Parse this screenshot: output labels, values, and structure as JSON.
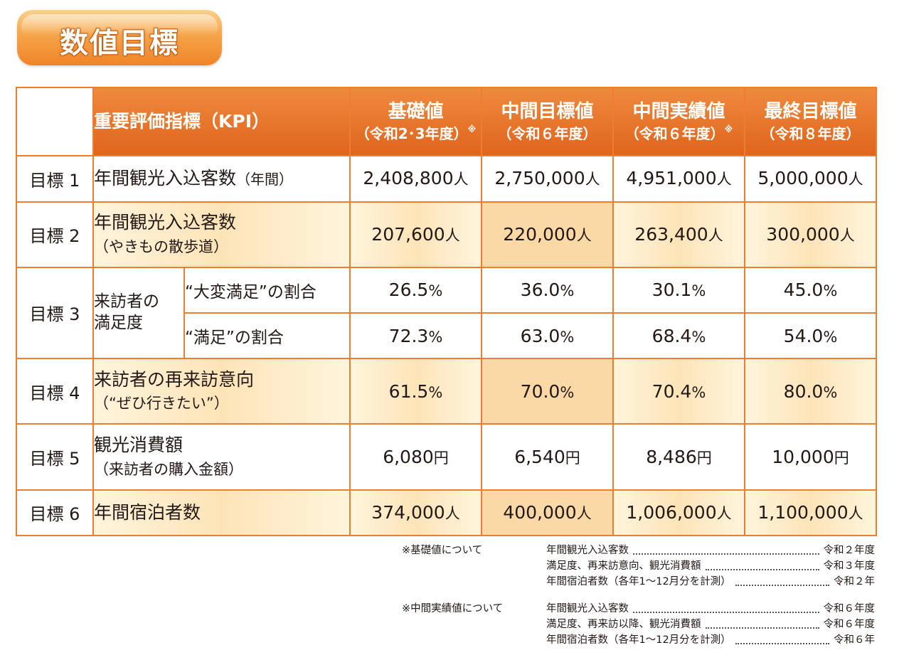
{
  "title": "数値目標",
  "header": {
    "kpi": "重要評価指標（KPI）",
    "cols": [
      {
        "main": "基礎値",
        "sub": "（令和2･3年度）",
        "mark": "※"
      },
      {
        "main": "中間目標値",
        "sub": "（令和６年度）",
        "mark": ""
      },
      {
        "main": "中間実績値",
        "sub": "（令和６年度）",
        "mark": "※"
      },
      {
        "main": "最終目標値",
        "sub": "（令和８年度）",
        "mark": ""
      }
    ]
  },
  "rows": {
    "g1": {
      "goal": "目標 1",
      "metric": "年間観光入込客数",
      "metric_note": "（年間）",
      "values": [
        {
          "n": "2,408,800",
          "u": "人"
        },
        {
          "n": "2,750,000",
          "u": "人"
        },
        {
          "n": "4,951,000",
          "u": "人"
        },
        {
          "n": "5,000,000",
          "u": "人"
        }
      ]
    },
    "g2": {
      "goal": "目標 2",
      "metric": "年間観光入込客数",
      "metric_note": "（やきもの散歩道）",
      "values": [
        {
          "n": "207,600",
          "u": "人"
        },
        {
          "n": "220,000",
          "u": "人"
        },
        {
          "n": "263,400",
          "u": "人"
        },
        {
          "n": "300,000",
          "u": "人"
        }
      ]
    },
    "g3": {
      "goal": "目標 3",
      "group_line1": "来訪者の",
      "group_line2": "満足度",
      "sub_a": "“大変満足”の割合",
      "sub_b": "“満足”の割合",
      "values_a": [
        {
          "n": "26.5",
          "u": "%"
        },
        {
          "n": "36.0",
          "u": "%"
        },
        {
          "n": "30.1",
          "u": "%"
        },
        {
          "n": "45.0",
          "u": "%"
        }
      ],
      "values_b": [
        {
          "n": "72.3",
          "u": "%"
        },
        {
          "n": "63.0",
          "u": "%"
        },
        {
          "n": "68.4",
          "u": "%"
        },
        {
          "n": "54.0",
          "u": "%"
        }
      ]
    },
    "g4": {
      "goal": "目標 4",
      "metric": "来訪者の再来訪意向",
      "metric_note": "（“ぜひ行きたい”）",
      "values": [
        {
          "n": "61.5",
          "u": "%"
        },
        {
          "n": "70.0",
          "u": "%"
        },
        {
          "n": "70.4",
          "u": "%"
        },
        {
          "n": "80.0",
          "u": "%"
        }
      ]
    },
    "g5": {
      "goal": "目標 5",
      "metric": "観光消費額",
      "metric_note": "（来訪者の購入金額）",
      "values": [
        {
          "n": "6,080",
          "u": "円"
        },
        {
          "n": "6,540",
          "u": "円"
        },
        {
          "n": "8,486",
          "u": "円"
        },
        {
          "n": "10,000",
          "u": "円"
        }
      ]
    },
    "g6": {
      "goal": "目標 6",
      "metric": "年間宿泊者数",
      "metric_note": "",
      "values": [
        {
          "n": "374,000",
          "u": "人"
        },
        {
          "n": "400,000",
          "u": "人"
        },
        {
          "n": "1,006,000",
          "u": "人"
        },
        {
          "n": "1,100,000",
          "u": "人"
        }
      ]
    }
  },
  "notes": [
    {
      "head": "※基礎値について",
      "lines": [
        {
          "label": "年間観光入込客数",
          "year": "令和２年度"
        },
        {
          "label": "満足度、再来訪意向、観光消費額",
          "year": "令和３年度"
        },
        {
          "label": "年間宿泊者数（各年1～12月分を計測）",
          "year": "令和２年"
        }
      ]
    },
    {
      "head": "※中間実績値について",
      "lines": [
        {
          "label": "年間観光入込客数",
          "year": "令和６年度"
        },
        {
          "label": "満足度、再来訪以降、観光消費額",
          "year": "令和６年度"
        },
        {
          "label": "年間宿泊者数（各年1～12月分を計測）",
          "year": "令和６年"
        }
      ]
    }
  ],
  "colors": {
    "accent": "#e8702a",
    "band": "#fde4b8"
  }
}
